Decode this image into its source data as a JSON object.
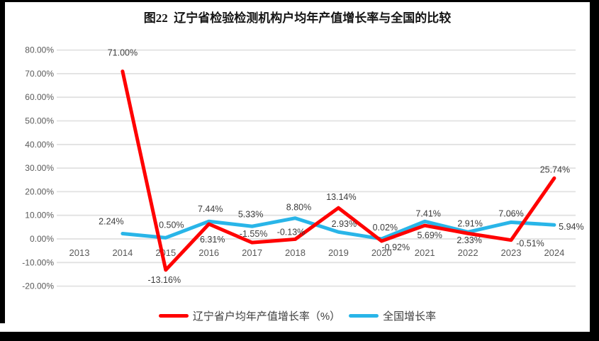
{
  "title": "图22  辽宁省检验检测机构户均年产值增长率与全国的比较",
  "chart_data": {
    "type": "line",
    "categories": [
      "2013",
      "2014",
      "2015",
      "2016",
      "2017",
      "2018",
      "2019",
      "2020",
      "2021",
      "2022",
      "2023",
      "2024"
    ],
    "series": [
      {
        "name": "辽宁省户均年产值增长率（%）",
        "color": "#FF0000",
        "values": [
          null,
          71.0,
          -13.16,
          6.31,
          -1.55,
          -0.13,
          13.14,
          -0.92,
          5.69,
          2.33,
          -0.51,
          25.74
        ]
      },
      {
        "name": "全国增长率",
        "color": "#29B5E8",
        "values": [
          null,
          2.24,
          0.5,
          7.44,
          5.33,
          8.8,
          2.93,
          0.02,
          7.41,
          2.91,
          7.06,
          5.94
        ]
      }
    ],
    "ylim": [
      -20,
      80
    ],
    "y_tick_step": 10,
    "y_tick_labels": [
      "80.00%",
      "70.00%",
      "60.00%",
      "50.00%",
      "40.00%",
      "30.00%",
      "20.00%",
      "10.00%",
      "0.00%",
      "-10.00%",
      "-20.00%"
    ],
    "grid": true,
    "data_labels": true,
    "label_format": "percent2",
    "legend_position": "bottom"
  },
  "colors": {
    "grid": "#E1E1E1",
    "axis_text": "#595959",
    "label_text": "#3c3c3c",
    "frame": "#000000"
  }
}
